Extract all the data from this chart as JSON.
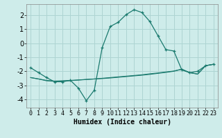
{
  "xlabel": "Humidex (Indice chaleur)",
  "bg_color": "#ceecea",
  "grid_color": "#aed4d2",
  "line_color": "#1a7a6e",
  "xlim": [
    -0.5,
    23.5
  ],
  "ylim": [
    -4.6,
    2.8
  ],
  "yticks": [
    -4,
    -3,
    -2,
    -1,
    0,
    1,
    2
  ],
  "xticks": [
    0,
    1,
    2,
    3,
    4,
    5,
    6,
    7,
    8,
    9,
    10,
    11,
    12,
    13,
    14,
    15,
    16,
    17,
    18,
    19,
    20,
    21,
    22,
    23
  ],
  "line1_x": [
    0,
    1,
    2,
    3,
    4,
    5,
    6,
    7,
    8,
    9,
    10,
    11,
    12,
    13,
    14,
    15,
    16,
    17,
    18,
    19,
    20,
    21,
    22,
    23
  ],
  "line1_y": [
    -1.75,
    -2.1,
    -2.45,
    -2.75,
    -2.75,
    -2.65,
    -3.2,
    -4.1,
    -3.35,
    -0.3,
    1.2,
    1.5,
    2.05,
    2.4,
    2.2,
    1.55,
    0.55,
    -0.45,
    -0.55,
    -1.9,
    -2.1,
    -2.0,
    -1.6,
    -1.5
  ],
  "line2_x": [
    0,
    1,
    2,
    3,
    4,
    5,
    6,
    7,
    8,
    9,
    10,
    11,
    12,
    13,
    14,
    15,
    16,
    17,
    18,
    19,
    20,
    21,
    22,
    23
  ],
  "line2_y": [
    -2.45,
    -2.55,
    -2.65,
    -2.7,
    -2.68,
    -2.65,
    -2.62,
    -2.58,
    -2.55,
    -2.52,
    -2.48,
    -2.43,
    -2.38,
    -2.33,
    -2.28,
    -2.22,
    -2.15,
    -2.08,
    -2.0,
    -1.85,
    -2.1,
    -2.2,
    -1.6,
    -1.5
  ],
  "line3_x": [
    0,
    1,
    2,
    3,
    4,
    5,
    6,
    7,
    8,
    9,
    10,
    11,
    12,
    13,
    14,
    15,
    16,
    17,
    18,
    19,
    20,
    21,
    22,
    23
  ],
  "line3_y": [
    -2.45,
    -2.55,
    -2.68,
    -2.72,
    -2.7,
    -2.67,
    -2.63,
    -2.59,
    -2.55,
    -2.5,
    -2.45,
    -2.4,
    -2.35,
    -2.3,
    -2.25,
    -2.18,
    -2.12,
    -2.05,
    -1.98,
    -1.85,
    -2.1,
    -2.2,
    -1.6,
    -1.5
  ]
}
